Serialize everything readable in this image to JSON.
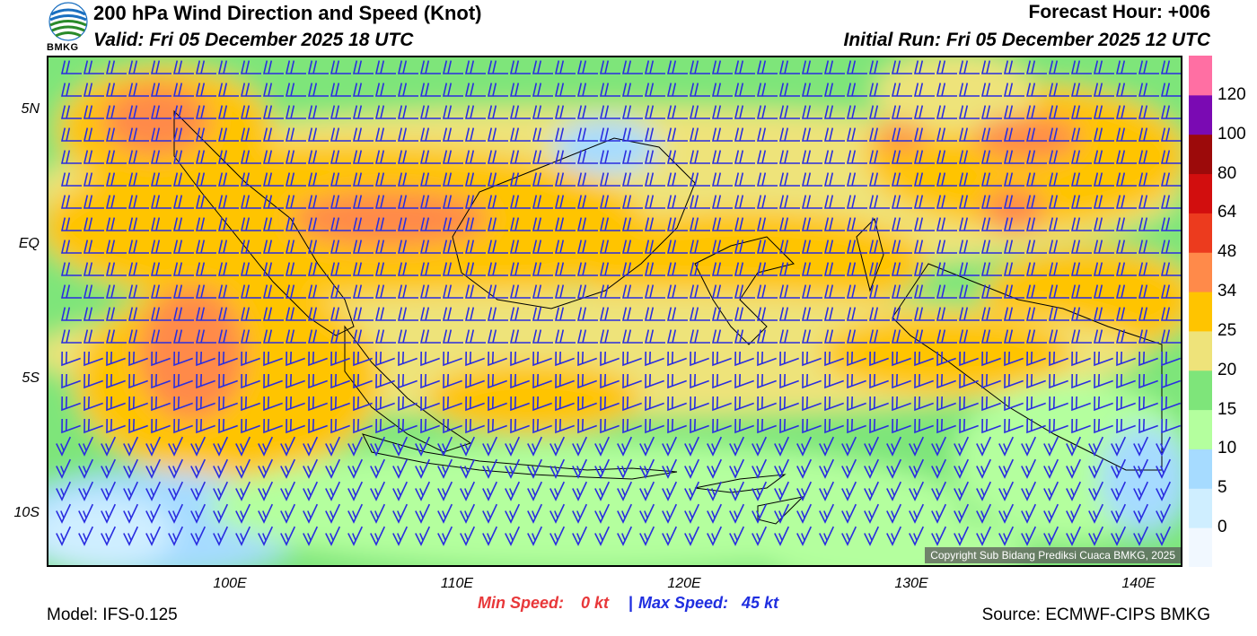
{
  "header": {
    "title": "200 hPa Wind Direction and Speed (Knot)",
    "valid": "Valid: Fri 05 December 2025 18 UTC",
    "forecast_hour": "Forecast Hour: +006",
    "initial_run": "Initial Run: Fri 05 December 2025 12 UTC",
    "logo_text": "BMKG"
  },
  "axes": {
    "lat_labels": [
      "5N",
      "EQ",
      "5S",
      "10S"
    ],
    "lon_labels": [
      "100E",
      "110E",
      "120E",
      "130E",
      "140E"
    ]
  },
  "colorbar": {
    "labels": [
      "0",
      "5",
      "10",
      "15",
      "20",
      "25",
      "34",
      "48",
      "64",
      "80",
      "100",
      "120"
    ],
    "colors": [
      "#f1f8ff",
      "#cfeeff",
      "#a6dbff",
      "#b4ff9e",
      "#7ee57a",
      "#eee37a",
      "#ffc400",
      "#ff8a4a",
      "#ec3b1e",
      "#d20e0e",
      "#9c0a0a",
      "#7a0ab3",
      "#ff6fa3"
    ]
  },
  "footer": {
    "min_label": "Min Speed:",
    "min_value": "0 kt",
    "separator": "|",
    "max_label": "Max Speed:",
    "max_value": "45 kt",
    "model": "Model: IFS-0.125",
    "source": "Source: ECMWF-CIPS BMKG",
    "copyright": "Copyright Sub Bidang Prediksi Cuaca BMKG, 2025"
  },
  "style": {
    "barb_color": "#2a2de0",
    "coast_color": "#000000"
  }
}
